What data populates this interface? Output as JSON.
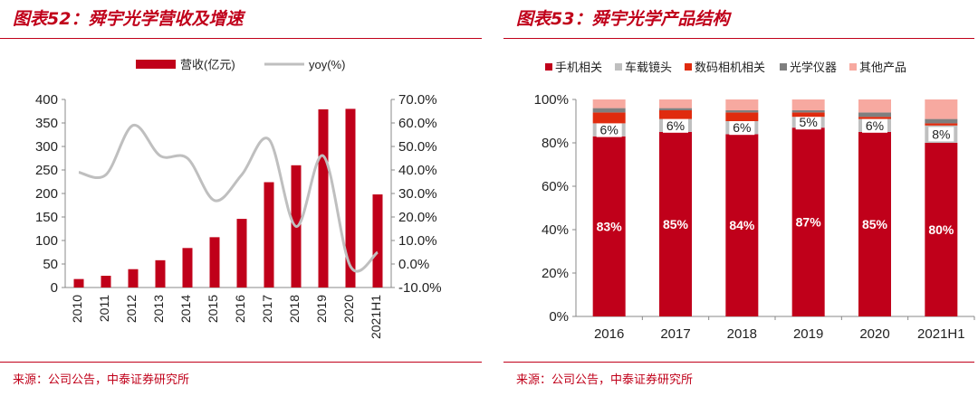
{
  "charts": {
    "left": {
      "title": "图表52：舜宇光学营收及增速",
      "source": "来源：公司公告，中泰证券研究所"
    },
    "right": {
      "title": "图表53：舜宇光学产品结构",
      "source": "来源：公司公告，中泰证券研究所"
    }
  },
  "colors": {
    "accent": "#c0001a",
    "bar": "#c0001a",
    "line": "#bfbfbf",
    "camera_module": "#e02b0e",
    "optical_instrument": "#7f7f7f",
    "other": "#f7a9a0",
    "lens": "#bfbfbf"
  },
  "chart_data": [
    {
      "type": "bar",
      "title": "舜宇光学营收及增速",
      "categories": [
        "2010",
        "2011",
        "2012",
        "2013",
        "2014",
        "2015",
        "2016",
        "2017",
        "2018",
        "2019",
        "2020",
        "2021H1"
      ],
      "series": [
        {
          "name": "营收(亿元)",
          "type": "bar",
          "axis": "left",
          "values": [
            18,
            25,
            39,
            58,
            84,
            107,
            146,
            224,
            260,
            379,
            380,
            198
          ]
        },
        {
          "name": "yoy(%)",
          "type": "line",
          "axis": "right",
          "values": [
            39,
            38,
            59,
            46,
            45,
            27,
            38,
            53,
            16,
            46,
            -1,
            5
          ]
        }
      ],
      "ylim": [
        0,
        400
      ],
      "yticks": [
        "0",
        "50",
        "100",
        "150",
        "200",
        "250",
        "300",
        "350",
        "400"
      ],
      "y2lim": [
        -10,
        70
      ],
      "y2ticks": [
        "-10.0%",
        "0.0%",
        "10.0%",
        "20.0%",
        "30.0%",
        "40.0%",
        "50.0%",
        "60.0%",
        "70.0%"
      ],
      "legend": "top-center"
    },
    {
      "type": "bar",
      "stacked": true,
      "title": "舜宇光学产品结构",
      "categories": [
        "2016",
        "2017",
        "2018",
        "2019",
        "2020",
        "2021H1"
      ],
      "series": [
        {
          "name": "手机相关",
          "values": [
            83,
            85,
            84,
            87,
            85,
            80
          ],
          "labels": [
            "83%",
            "85%",
            "84%",
            "87%",
            "85%",
            "80%"
          ]
        },
        {
          "name": "车载镜头",
          "values": [
            6,
            6,
            6,
            5,
            6,
            8
          ],
          "labels": [
            "6%",
            "6%",
            "6%",
            "5%",
            "6%",
            "8%"
          ]
        },
        {
          "name": "数码相机相关",
          "values": [
            5,
            4,
            4,
            2,
            1,
            1
          ]
        },
        {
          "name": "光学仪器",
          "values": [
            2,
            1,
            1,
            1,
            2,
            2
          ]
        },
        {
          "name": "其他产品",
          "values": [
            4,
            4,
            5,
            5,
            6,
            9
          ]
        }
      ],
      "ylim": [
        0,
        100
      ],
      "yticks": [
        "0%",
        "20%",
        "40%",
        "60%",
        "80%",
        "100%"
      ],
      "legend": "top"
    }
  ]
}
